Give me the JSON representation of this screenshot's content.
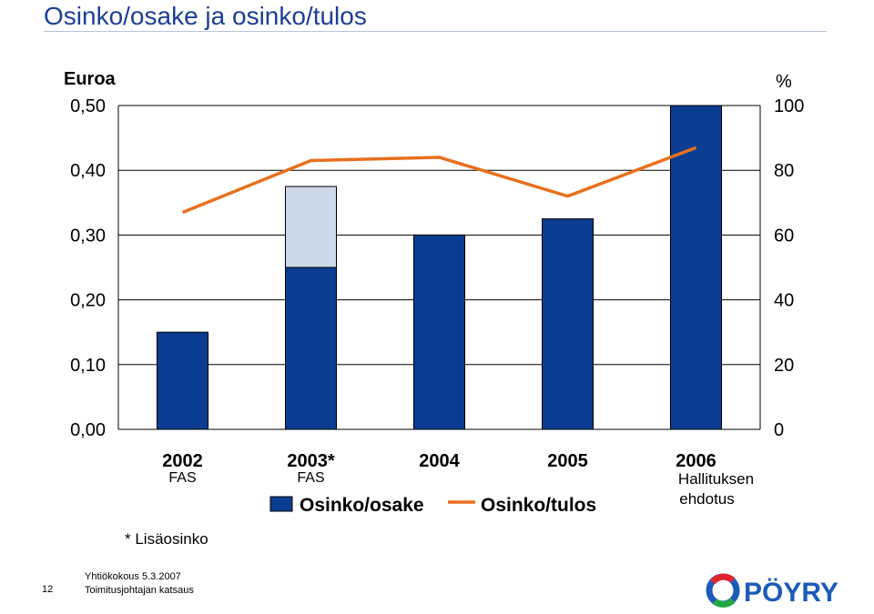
{
  "header": {
    "title": "Osinko/osake ja osinko/tulos"
  },
  "chart_data": {
    "type": "bar",
    "left_axis": {
      "label": "Euroa",
      "ylim": [
        0,
        0.5
      ],
      "ticks": [
        "0,00",
        "0,10",
        "0,20",
        "0,30",
        "0,40",
        "0,50"
      ]
    },
    "right_axis": {
      "label": "%",
      "ylim": [
        0,
        100
      ],
      "ticks": [
        "0",
        "20",
        "40",
        "60",
        "80",
        "100"
      ]
    },
    "categories": [
      {
        "year": "2002",
        "sub": "FAS"
      },
      {
        "year": "2003*",
        "sub": "FAS"
      },
      {
        "year": "2004",
        "sub": ""
      },
      {
        "year": "2005",
        "sub": ""
      },
      {
        "year": "2006",
        "sub": "Hallituksen ehdotus"
      }
    ],
    "series": [
      {
        "name": "Osinko/osake",
        "type": "bar",
        "axis": "left",
        "values": [
          0.15,
          0.25,
          0.3,
          0.325,
          0.5
        ]
      },
      {
        "type": "bar-stacked",
        "axis": "left",
        "values": [
          0,
          0.125,
          0,
          0,
          0
        ]
      },
      {
        "name": "Osinko/tulos",
        "type": "line",
        "axis": "right",
        "values": [
          67,
          83,
          84,
          72,
          87
        ]
      }
    ],
    "colors": {
      "bar": "#0a3d91",
      "extra": "#cdd9ea",
      "line": "#e8701e",
      "grid": "#000000"
    },
    "grid": true,
    "legend_position": "bottom"
  },
  "note": "* Lisäosinko",
  "footer": {
    "page_number": "12",
    "line1": "Yhtiökokous 5.3.2007",
    "line2": "Toimitusjohtajan katsaus",
    "logo_text": "PÖYRY"
  }
}
